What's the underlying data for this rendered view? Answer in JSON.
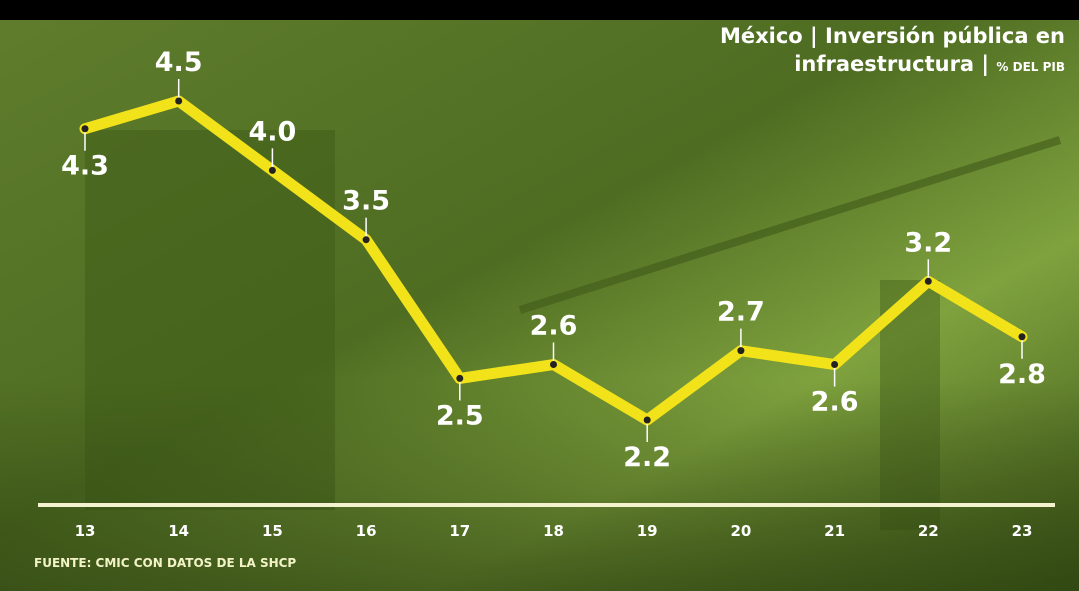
{
  "chart_data": {
    "type": "line",
    "title": "México | Inversión pública en infraestructura |",
    "subtitle": "% DEL PIB",
    "categories": [
      "13",
      "14",
      "15",
      "16",
      "17",
      "18",
      "19",
      "20",
      "21",
      "22",
      "23"
    ],
    "values": [
      4.3,
      4.5,
      4.0,
      3.5,
      2.5,
      2.6,
      2.2,
      2.7,
      2.6,
      3.2,
      2.8
    ],
    "value_labels": [
      "4.3",
      "4.5",
      "4.0",
      "3.5",
      "2.5",
      "2.6",
      "2.2",
      "2.7",
      "2.6",
      "3.2",
      "2.8"
    ],
    "color": "#f2e21a",
    "source": "FUENTE: CMIC CON DATOS DE LA SHCP"
  }
}
